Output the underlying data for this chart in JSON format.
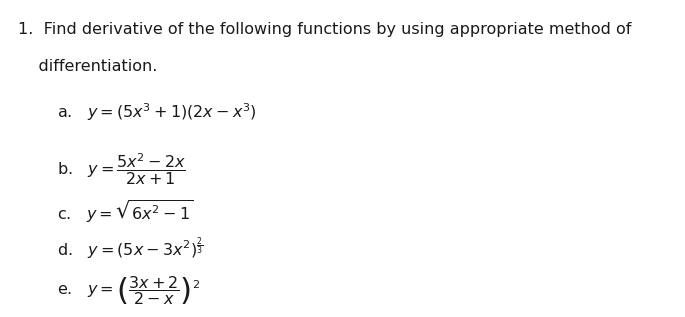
{
  "background_color": "#ffffff",
  "text_color": "#1a1a1a",
  "font_size": 11.5,
  "fig_width": 6.65,
  "fig_height": 2.74,
  "title_line1": "1.  Find derivative of the following functions by using appropriate method of",
  "title_line2": "    differentiation.",
  "item_a": "a.   $y = (5x^3 + 1)(2x - x^3)$",
  "item_b_prefix": "b.   $y = $",
  "item_b_num": "$5x^2-2x$",
  "item_b_den": "$2x+1$",
  "item_c": "c.   $y = \\sqrt{6x^2 - 1}$",
  "item_d": "d.   $y = (5x - 3x^2)^{\\frac{2}{3}}$",
  "item_e": "e.   $y = \\left(\\dfrac{3x+2}{2-x}\\right)^{2}$"
}
